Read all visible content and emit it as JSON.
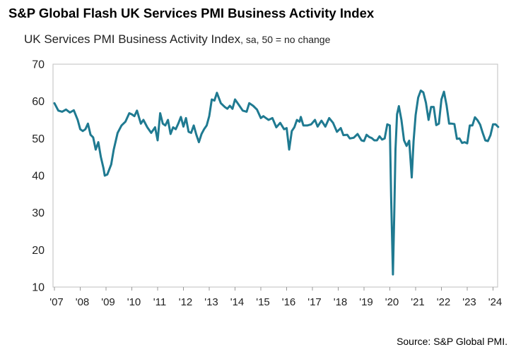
{
  "title": "S&P Global Flash UK Services PMI Business Activity Index",
  "subtitle_main": "UK Services PMI Business Activity Index",
  "subtitle_note": ", sa, 50 = no change",
  "source": "Source: S&P Global PMI.",
  "colors": {
    "line": "#1f7a91",
    "axis": "#bfbfbf",
    "text": "#222222"
  },
  "chart_data": {
    "type": "line",
    "title": "S&P Global Flash UK Services PMI Business Activity Index",
    "ylabel": "UK Services PMI Business Activity Index, sa, 50 = no change",
    "xlabel": "",
    "ylim": [
      10,
      70
    ],
    "yticks": [
      10,
      20,
      30,
      40,
      50,
      60,
      70
    ],
    "xlim": [
      2007.0,
      2024.3
    ],
    "xticks": [
      {
        "value": 2007,
        "label": "'07"
      },
      {
        "value": 2008,
        "label": "'08"
      },
      {
        "value": 2009,
        "label": "'09"
      },
      {
        "value": 2010,
        "label": "'10"
      },
      {
        "value": 2011,
        "label": "'11"
      },
      {
        "value": 2012,
        "label": "'12"
      },
      {
        "value": 2013,
        "label": "'13"
      },
      {
        "value": 2014,
        "label": "'14"
      },
      {
        "value": 2015,
        "label": "'15"
      },
      {
        "value": 2016,
        "label": "'16"
      },
      {
        "value": 2017,
        "label": "'17"
      },
      {
        "value": 2018,
        "label": "'18"
      },
      {
        "value": 2019,
        "label": "'19"
      },
      {
        "value": 2020,
        "label": "'20"
      },
      {
        "value": 2021,
        "label": "'21"
      },
      {
        "value": 2022,
        "label": "'22"
      },
      {
        "value": 2023,
        "label": "'23"
      },
      {
        "value": 2024,
        "label": "'24"
      }
    ],
    "grid": false,
    "series": [
      {
        "x": [
          2007.0,
          2007.15,
          2007.3,
          2007.45,
          2007.6,
          2007.75,
          2007.9,
          2008.0,
          2008.1,
          2008.2,
          2008.3,
          2008.4,
          2008.5,
          2008.6,
          2008.7,
          2008.8,
          2008.9,
          2008.95,
          2009.05,
          2009.2,
          2009.3,
          2009.45,
          2009.6,
          2009.75,
          2009.9,
          2010.0,
          2010.1,
          2010.2,
          2010.35,
          2010.45,
          2010.6,
          2010.75,
          2010.9,
          2011.0,
          2011.1,
          2011.2,
          2011.3,
          2011.4,
          2011.5,
          2011.6,
          2011.7,
          2011.8,
          2011.9,
          2012.0,
          2012.1,
          2012.2,
          2012.3,
          2012.4,
          2012.5,
          2012.6,
          2012.7,
          2012.8,
          2012.9,
          2013.0,
          2013.1,
          2013.2,
          2013.3,
          2013.45,
          2013.6,
          2013.7,
          2013.8,
          2013.9,
          2014.0,
          2014.15,
          2014.3,
          2014.45,
          2014.55,
          2014.7,
          2014.85,
          2015.0,
          2015.1,
          2015.2,
          2015.3,
          2015.45,
          2015.6,
          2015.75,
          2015.9,
          2016.0,
          2016.1,
          2016.2,
          2016.3,
          2016.4,
          2016.5,
          2016.55,
          2016.65,
          2016.8,
          2016.95,
          2017.1,
          2017.2,
          2017.35,
          2017.5,
          2017.65,
          2017.8,
          2017.95,
          2018.1,
          2018.2,
          2018.35,
          2018.45,
          2018.6,
          2018.75,
          2018.9,
          2019.0,
          2019.1,
          2019.2,
          2019.3,
          2019.4,
          2019.5,
          2019.6,
          2019.7,
          2019.8,
          2019.9,
          2020.0,
          2020.05,
          2020.12,
          2020.17,
          2020.22,
          2020.28,
          2020.35,
          2020.45,
          2020.55,
          2020.65,
          2020.75,
          2020.85,
          2020.92,
          2021.0,
          2021.1,
          2021.2,
          2021.3,
          2021.4,
          2021.5,
          2021.6,
          2021.7,
          2021.8,
          2021.9,
          2022.0,
          2022.1,
          2022.2,
          2022.3,
          2022.4,
          2022.5,
          2022.6,
          2022.7,
          2022.8,
          2022.9,
          2023.0,
          2023.1,
          2023.2,
          2023.3,
          2023.4,
          2023.5,
          2023.6,
          2023.7,
          2023.8,
          2023.9,
          2024.0,
          2024.1,
          2024.2
        ],
        "y": [
          59.5,
          57.5,
          57.2,
          57.8,
          57.0,
          57.6,
          55.0,
          52.5,
          52.0,
          52.5,
          54.0,
          51.0,
          50.3,
          47.0,
          49.0,
          45.0,
          42.0,
          40.0,
          40.3,
          43.0,
          47.0,
          51.5,
          53.5,
          54.5,
          56.8,
          56.5,
          56.0,
          57.5,
          54.0,
          55.0,
          53.0,
          51.5,
          53.0,
          49.5,
          56.8,
          54.0,
          53.5,
          55.0,
          51.2,
          53.0,
          52.5,
          54.0,
          55.8,
          53.2,
          55.5,
          51.8,
          51.5,
          53.5,
          51.0,
          49.0,
          51.2,
          52.5,
          53.5,
          56.0,
          60.5,
          60.2,
          62.3,
          59.5,
          58.5,
          58.0,
          58.8,
          58.0,
          60.5,
          59.0,
          57.5,
          57.2,
          59.5,
          58.8,
          57.8,
          55.5,
          56.0,
          55.5,
          55.0,
          55.5,
          53.0,
          54.2,
          52.5,
          52.8,
          47.0,
          52.0,
          53.0,
          55.0,
          54.5,
          55.8,
          53.5,
          53.5,
          53.8,
          55.0,
          53.2,
          54.8,
          53.2,
          55.5,
          54.2,
          51.8,
          52.8,
          50.9,
          51.0,
          50.0,
          50.2,
          51.2,
          49.5,
          49.3,
          51.0,
          50.4,
          50.1,
          49.5,
          49.5,
          50.6,
          49.7,
          50.0,
          53.8,
          53.5,
          34.5,
          13.4,
          29.0,
          47.0,
          56.5,
          58.7,
          55.0,
          49.5,
          48.0,
          49.4,
          39.5,
          49.3,
          56.3,
          61.0,
          62.9,
          62.4,
          59.6,
          55.0,
          58.5,
          58.5,
          53.6,
          54.0,
          60.5,
          62.6,
          58.9,
          54.0,
          54.0,
          53.9,
          49.9,
          50.0,
          48.8,
          49.0,
          48.7,
          53.5,
          53.5,
          55.7,
          54.9,
          53.7,
          51.5,
          49.5,
          49.3,
          50.9,
          53.8,
          53.8,
          53.1
        ],
        "color": "#1f7a91"
      }
    ]
  }
}
